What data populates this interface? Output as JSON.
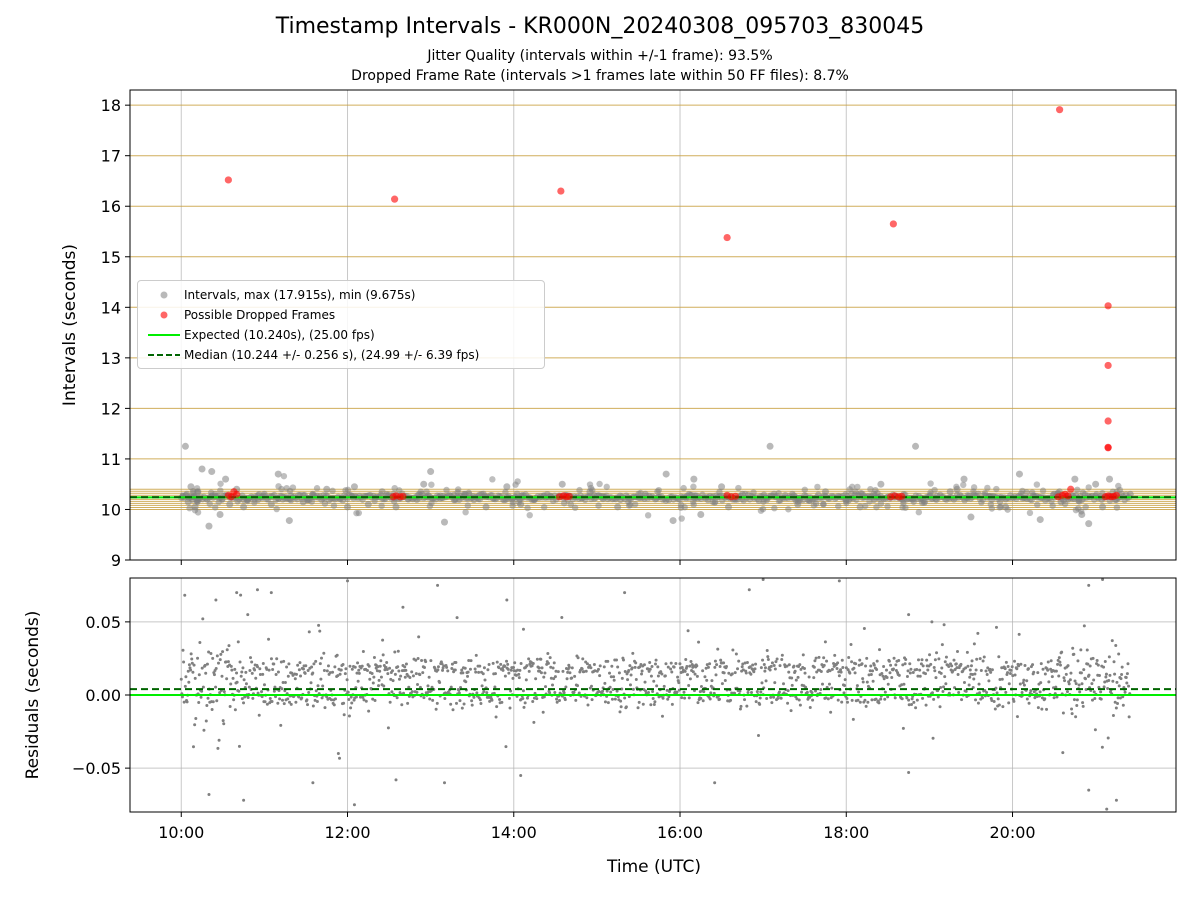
{
  "figure": {
    "title": "Timestamp Intervals - KR000N_20240308_095703_830045",
    "subtitle_1": "Jitter Quality (intervals within +/-1 frame): 93.5%",
    "subtitle_2": "Dropped Frame Rate (intervals >1 frames late within 50 FF files): 8.7%"
  },
  "colors": {
    "intervals": "#808080",
    "dropped": "#ff0000",
    "expected": "#00ee00",
    "median": "#006400",
    "frame_grid": "#c8a040",
    "grid": "#b0b0b0"
  },
  "chart_data": [
    {
      "type": "scatter",
      "ylabel": "Intervals (seconds)",
      "ylim": [
        9,
        18.3
      ],
      "xlim": [
        "09:23",
        "21:58"
      ],
      "yticks": [
        "9",
        "10",
        "11",
        "12",
        "13",
        "14",
        "15",
        "16",
        "17",
        "18"
      ],
      "legend": {
        "placement": "center-left",
        "entries": [
          "Intervals, max (17.915s), min (9.675s)",
          "Possible Dropped Frames",
          "Expected (10.240s), (25.00 fps)",
          "Median (10.244 +/- 0.256 s), (24.99 +/- 6.39 fps)"
        ]
      },
      "expected": 10.24,
      "median": 10.244,
      "frame_lines": [
        10.0,
        10.04,
        10.08,
        10.12,
        10.16,
        10.2,
        10.24,
        10.28,
        10.32,
        10.36,
        10.4,
        11.0,
        12.0,
        13.0,
        14.0,
        15.0,
        16.0,
        17.0,
        18.0
      ],
      "series": [
        {
          "name": "Intervals, max (17.915s), min (9.675s)",
          "x": [
            "10:03",
            "10:04",
            "10:05",
            "10:07",
            "10:08",
            "10:10",
            "10:12",
            "10:15",
            "10:20",
            "10:22",
            "10:28",
            "10:32",
            "10:35",
            "10:40",
            "10:45",
            "10:48",
            "11:00",
            "11:05",
            "11:10",
            "11:18",
            "11:28",
            "11:35",
            "11:45",
            "12:00",
            "12:05",
            "12:15",
            "12:25",
            "12:35",
            "12:50",
            "12:55",
            "13:00",
            "13:10",
            "13:25",
            "13:40",
            "13:55",
            "14:05",
            "14:15",
            "14:35",
            "14:55",
            "15:15",
            "15:35",
            "15:50",
            "15:55",
            "16:10",
            "16:15",
            "16:30",
            "16:35",
            "16:40",
            "16:45",
            "17:05",
            "17:25",
            "17:45",
            "18:00",
            "18:10",
            "18:20",
            "18:25",
            "18:50",
            "19:05",
            "19:15",
            "19:20",
            "19:25",
            "19:30",
            "19:45",
            "19:55",
            "20:05",
            "20:20",
            "20:30",
            "20:35",
            "20:45",
            "20:50",
            "20:55",
            "21:00",
            "21:05",
            "21:10",
            "21:15",
            "21:25"
          ],
          "y": [
            11.25,
            10.3,
            10.15,
            10.45,
            10.2,
            10.05,
            10.35,
            10.8,
            9.67,
            10.75,
            9.9,
            10.6,
            10.1,
            10.4,
            10.05,
            10.2,
            10.3,
            10.1,
            10.7,
            9.78,
            10.15,
            10.3,
            10.4,
            10.05,
            10.45,
            10.1,
            10.35,
            10.05,
            10.2,
            10.5,
            10.75,
            9.75,
            10.3,
            10.05,
            10.45,
            10.1,
            10.2,
            10.5,
            10.35,
            10.05,
            10.3,
            10.7,
            9.78,
            10.6,
            9.9,
            10.45,
            10.05,
            10.2,
            10.3,
            11.25,
            10.1,
            10.35,
            10.2,
            10.05,
            10.3,
            10.5,
            11.25,
            10.2,
            10.35,
            10.4,
            10.6,
            9.85,
            10.2,
            10.05,
            10.7,
            9.8,
            10.3,
            10.15,
            10.6,
            9.9,
            9.72,
            10.5,
            10.05,
            10.6,
            10.2,
            10.3
          ]
        },
        {
          "name": "Possible Dropped Frames",
          "x": [
            "10:34",
            "10:36",
            "10:38",
            "10:40",
            "12:33",
            "12:35",
            "12:38",
            "12:40",
            "14:33",
            "14:36",
            "14:38",
            "14:40",
            "16:34",
            "16:37",
            "16:40",
            "18:32",
            "18:35",
            "18:38",
            "18:40",
            "20:33",
            "20:36",
            "20:38",
            "20:40",
            "20:42",
            "21:07",
            "21:09",
            "21:11",
            "21:13",
            "21:15",
            "10:34",
            "12:34",
            "14:34",
            "16:34",
            "18:34",
            "20:34",
            "21:09",
            "21:09",
            "21:09",
            "21:09",
            "21:09"
          ],
          "y": [
            10.28,
            10.25,
            10.35,
            10.3,
            10.25,
            10.27,
            10.25,
            10.26,
            10.25,
            10.27,
            10.25,
            10.26,
            10.28,
            10.25,
            10.26,
            10.25,
            10.27,
            10.25,
            10.26,
            10.25,
            10.28,
            10.3,
            10.27,
            10.4,
            10.25,
            10.27,
            10.25,
            10.26,
            10.28,
            16.52,
            16.14,
            16.3,
            15.38,
            15.65,
            17.91,
            14.03,
            12.85,
            11.75,
            11.22,
            11.23
          ]
        }
      ]
    },
    {
      "type": "scatter",
      "xlabel": "Time (UTC)",
      "ylabel": "Residuals (seconds)",
      "ylim": [
        -0.08,
        0.08
      ],
      "xlim": [
        "09:23",
        "21:58"
      ],
      "xticks": [
        "10:00",
        "12:00",
        "14:00",
        "16:00",
        "18:00",
        "20:00"
      ],
      "yticks": [
        "−0.05",
        "0.00",
        "0.05"
      ],
      "expected": 0.0,
      "median": 0.004,
      "series": [
        {
          "name": "Residuals",
          "x_range": [
            "10:00",
            "21:25"
          ],
          "bands": [
            0.0,
            0.018
          ],
          "outliers_x": [
            "10:25",
            "10:40",
            "10:48",
            "10:55",
            "11:05",
            "12:00",
            "12:40",
            "13:05",
            "13:55",
            "14:07",
            "15:20",
            "16:50",
            "17:00",
            "17:55",
            "18:45",
            "20:55",
            "21:05",
            "10:20",
            "10:45",
            "11:35",
            "12:05",
            "12:35",
            "13:10",
            "14:05",
            "16:25",
            "18:45",
            "20:55",
            "21:08",
            "21:15"
          ],
          "outliers_y": [
            0.065,
            0.07,
            0.055,
            0.072,
            0.07,
            0.078,
            0.06,
            0.075,
            0.065,
            0.045,
            0.07,
            0.072,
            0.079,
            0.078,
            0.055,
            0.075,
            0.079,
            -0.068,
            -0.072,
            -0.06,
            -0.075,
            -0.058,
            -0.06,
            -0.055,
            -0.06,
            -0.053,
            -0.065,
            -0.078,
            -0.072
          ]
        }
      ]
    }
  ]
}
